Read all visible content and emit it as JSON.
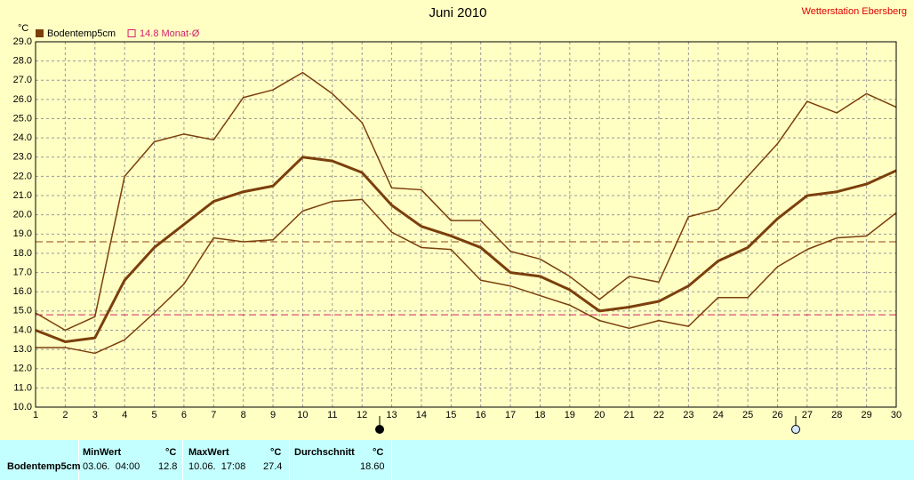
{
  "chart_data": {
    "type": "line",
    "title": "Juni 2010",
    "station": "Wetterstation Ebersberg",
    "y_unit": "°C",
    "categories": [
      "1",
      "2",
      "3",
      "4",
      "5",
      "6",
      "7",
      "8",
      "9",
      "10",
      "11",
      "12",
      "13",
      "14",
      "15",
      "16",
      "17",
      "18",
      "19",
      "20",
      "21",
      "22",
      "23",
      "24",
      "25",
      "26",
      "27",
      "28",
      "29",
      "30"
    ],
    "series": [
      {
        "color": "#7b3f0c",
        "width": 1.5,
        "values": [
          14.9,
          14.0,
          14.7,
          22.0,
          23.8,
          24.2,
          23.9,
          26.1,
          26.5,
          27.4,
          26.3,
          24.8,
          21.4,
          21.3,
          19.7,
          19.7,
          18.1,
          17.7,
          16.8,
          15.6,
          16.8,
          16.5,
          19.9,
          20.3,
          22.0,
          23.7,
          25.9,
          25.3,
          26.3,
          25.6
        ]
      },
      {
        "name": "Bodentemp5cm",
        "color": "#7b3f0c",
        "width": 3,
        "values": [
          14.0,
          13.4,
          13.6,
          16.6,
          18.3,
          19.5,
          20.7,
          21.2,
          21.5,
          23.0,
          22.8,
          22.2,
          20.5,
          19.4,
          18.9,
          18.3,
          17.0,
          16.8,
          16.1,
          15.0,
          15.2,
          15.5,
          16.3,
          17.6,
          18.3,
          19.8,
          21.0,
          21.2,
          21.6,
          22.3
        ]
      },
      {
        "color": "#7b3f0c",
        "width": 1.5,
        "values": [
          13.1,
          13.1,
          12.8,
          13.5,
          14.9,
          16.4,
          18.8,
          18.6,
          18.7,
          20.2,
          20.7,
          20.8,
          19.1,
          18.3,
          18.2,
          16.6,
          16.3,
          15.8,
          15.3,
          14.5,
          14.1,
          14.5,
          14.2,
          15.7,
          15.7,
          17.3,
          18.2,
          18.8,
          18.9,
          20.1
        ]
      }
    ],
    "reference_lines": [
      {
        "value": 14.8,
        "label": "14.8 Monat-Ø",
        "color": "#d0206a"
      },
      {
        "value": 18.6,
        "color": "#8b4513"
      }
    ],
    "ylim": [
      10,
      29
    ],
    "yticks": [
      {
        "value": 10,
        "label": "10.0"
      },
      {
        "value": 11,
        "label": "11.0"
      },
      {
        "value": 12,
        "label": "12.0"
      },
      {
        "value": 13,
        "label": "13.0"
      },
      {
        "value": 14,
        "label": "14.0"
      },
      {
        "value": 15,
        "label": "15.0"
      },
      {
        "value": 16,
        "label": "16.0"
      },
      {
        "value": 17,
        "label": "17.0"
      },
      {
        "value": 18,
        "label": "18.0"
      },
      {
        "value": 19,
        "label": "19.0"
      },
      {
        "value": 20,
        "label": "20.0"
      },
      {
        "value": 21,
        "label": "21.0"
      },
      {
        "value": 22,
        "label": "22.0"
      },
      {
        "value": 23,
        "label": "23.0"
      },
      {
        "value": 24,
        "label": "24.0"
      },
      {
        "value": 25,
        "label": "25.0"
      },
      {
        "value": 26,
        "label": "26.0"
      },
      {
        "value": 27,
        "label": "27.0"
      },
      {
        "value": 28,
        "label": "28.0"
      },
      {
        "value": 29,
        "label": "29.0"
      }
    ],
    "grid": true
  },
  "table": {
    "header": [
      "MinWert",
      "°C",
      "MaxWert",
      "°C",
      "Durchschnitt",
      "°C"
    ],
    "rows": [
      [
        "Bodentemp5cm",
        "03.06.  04:00",
        "12.8",
        "10.06.  17:08",
        "27.4",
        "18.60"
      ]
    ]
  }
}
